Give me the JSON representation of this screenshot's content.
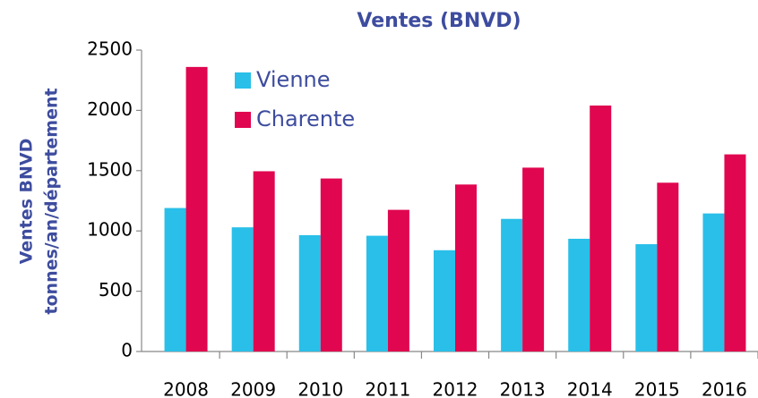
{
  "chart_data": {
    "type": "bar",
    "title": "Ventes (BNVD)",
    "ylabel": [
      "Ventes BNVD",
      "tonnes/an/département"
    ],
    "categories": [
      "2008",
      "2009",
      "2010",
      "2011",
      "2012",
      "2013",
      "2014",
      "2015",
      "2016"
    ],
    "series": [
      {
        "name": "Vienne",
        "color": "#29bfe8",
        "values": [
          1190,
          1030,
          965,
          960,
          840,
          1100,
          935,
          890,
          1145
        ]
      },
      {
        "name": "Charente",
        "color": "#e0064f",
        "values": [
          2360,
          1495,
          1435,
          1175,
          1385,
          1525,
          2040,
          1400,
          1635
        ]
      }
    ],
    "ylim": [
      0,
      2500
    ],
    "yticks": [
      0,
      500,
      1000,
      1500,
      2000,
      2500
    ],
    "legend": "upper left"
  }
}
